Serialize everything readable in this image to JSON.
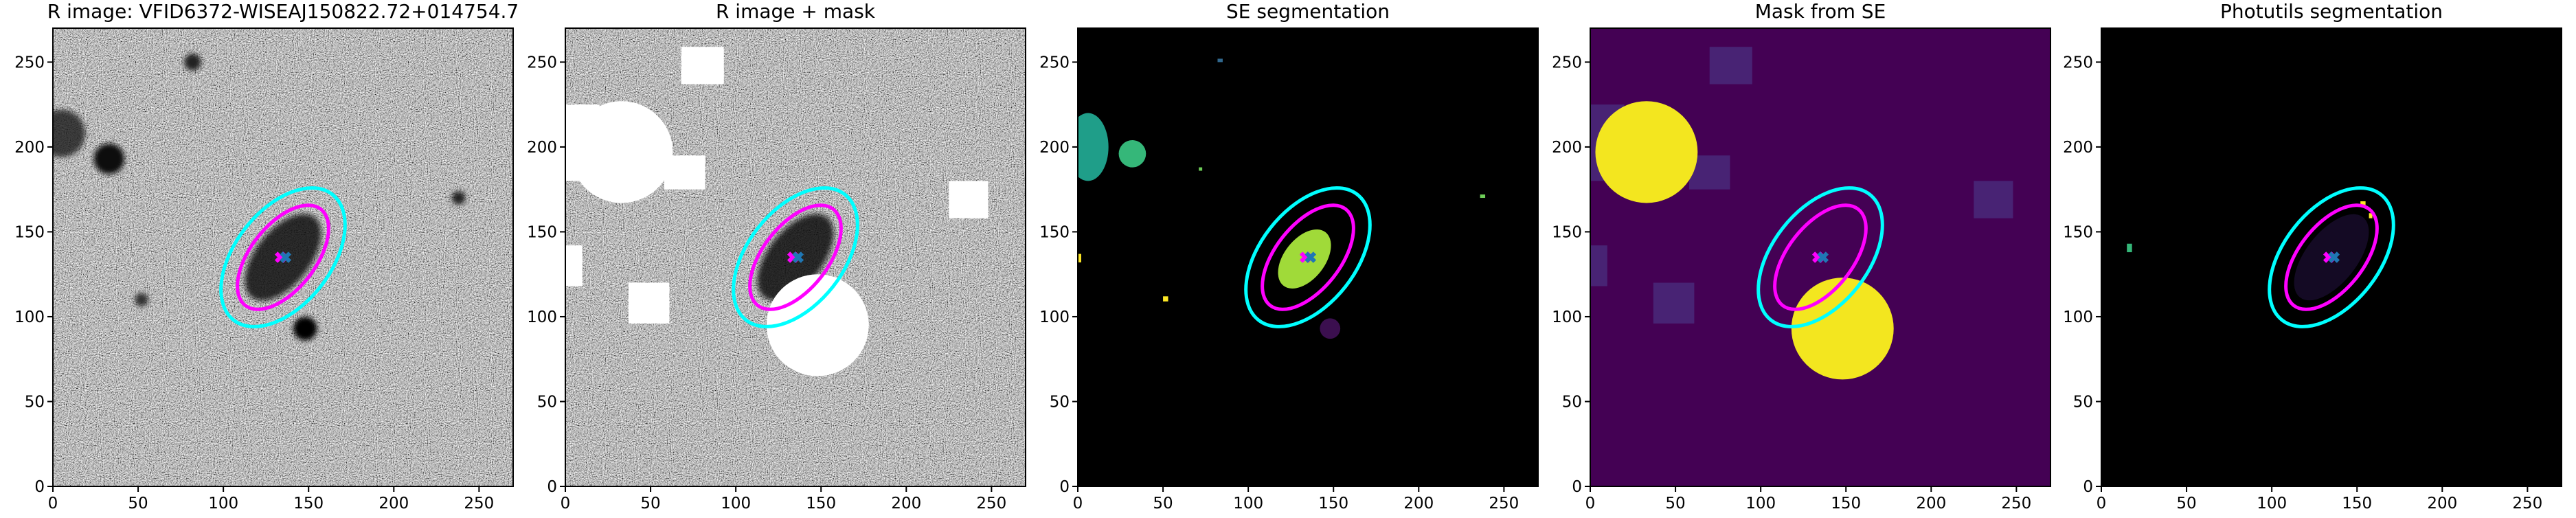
{
  "chart_data": [
    {
      "type": "image",
      "title": "R image: VFID6372-WISEAJ150822.72+014754.7",
      "xlim": [
        0,
        270
      ],
      "ylim": [
        0,
        270
      ],
      "xticks": [
        0,
        50,
        100,
        150,
        200,
        250
      ],
      "yticks": [
        0,
        50,
        100,
        150,
        200,
        250
      ],
      "ellipses": [
        {
          "color": "#00ffff",
          "cx": 135,
          "cy": 135,
          "a": 47,
          "b": 28,
          "angle": 52
        },
        {
          "color": "#ff00ff",
          "cx": 135,
          "cy": 135,
          "a": 36,
          "b": 19,
          "angle": 52
        }
      ]
    },
    {
      "type": "image",
      "title": "R image + mask",
      "xlim": [
        0,
        270
      ],
      "ylim": [
        0,
        270
      ],
      "xticks": [
        0,
        50,
        100,
        150,
        200,
        250
      ],
      "yticks": [
        0,
        50,
        100,
        150,
        200,
        250
      ],
      "ellipses": [
        {
          "color": "#00ffff",
          "cx": 135,
          "cy": 135,
          "a": 47,
          "b": 28,
          "angle": 52
        },
        {
          "color": "#ff00ff",
          "cx": 135,
          "cy": 135,
          "a": 36,
          "b": 19,
          "angle": 52
        }
      ]
    },
    {
      "type": "image",
      "title": "SE segmentation",
      "xlim": [
        0,
        270
      ],
      "ylim": [
        0,
        270
      ],
      "xticks": [
        0,
        50,
        100,
        150,
        200,
        250
      ],
      "yticks": [
        0,
        50,
        100,
        150,
        200,
        250
      ],
      "ellipses": [
        {
          "color": "#00ffff",
          "cx": 135,
          "cy": 135,
          "a": 47,
          "b": 28,
          "angle": 52
        },
        {
          "color": "#ff00ff",
          "cx": 135,
          "cy": 135,
          "a": 36,
          "b": 19,
          "angle": 52
        }
      ]
    },
    {
      "type": "image",
      "title": "Mask from SE",
      "xlim": [
        0,
        270
      ],
      "ylim": [
        0,
        270
      ],
      "xticks": [
        0,
        50,
        100,
        150,
        200,
        250
      ],
      "yticks": [
        0,
        50,
        100,
        150,
        200,
        250
      ],
      "ellipses": [
        {
          "color": "#00ffff",
          "cx": 135,
          "cy": 135,
          "a": 47,
          "b": 28,
          "angle": 52
        },
        {
          "color": "#ff00ff",
          "cx": 135,
          "cy": 135,
          "a": 36,
          "b": 19,
          "angle": 52
        }
      ]
    },
    {
      "type": "image",
      "title": "Photutils segmentation",
      "xlim": [
        0,
        270
      ],
      "ylim": [
        0,
        270
      ],
      "xticks": [
        0,
        50,
        100,
        150,
        200,
        250
      ],
      "yticks": [
        0,
        50,
        100,
        150,
        200,
        250
      ],
      "ellipses": [
        {
          "color": "#00ffff",
          "cx": 135,
          "cy": 135,
          "a": 47,
          "b": 28,
          "angle": 52
        },
        {
          "color": "#ff00ff",
          "cx": 135,
          "cy": 135,
          "a": 36,
          "b": 19,
          "angle": 52
        }
      ]
    }
  ]
}
